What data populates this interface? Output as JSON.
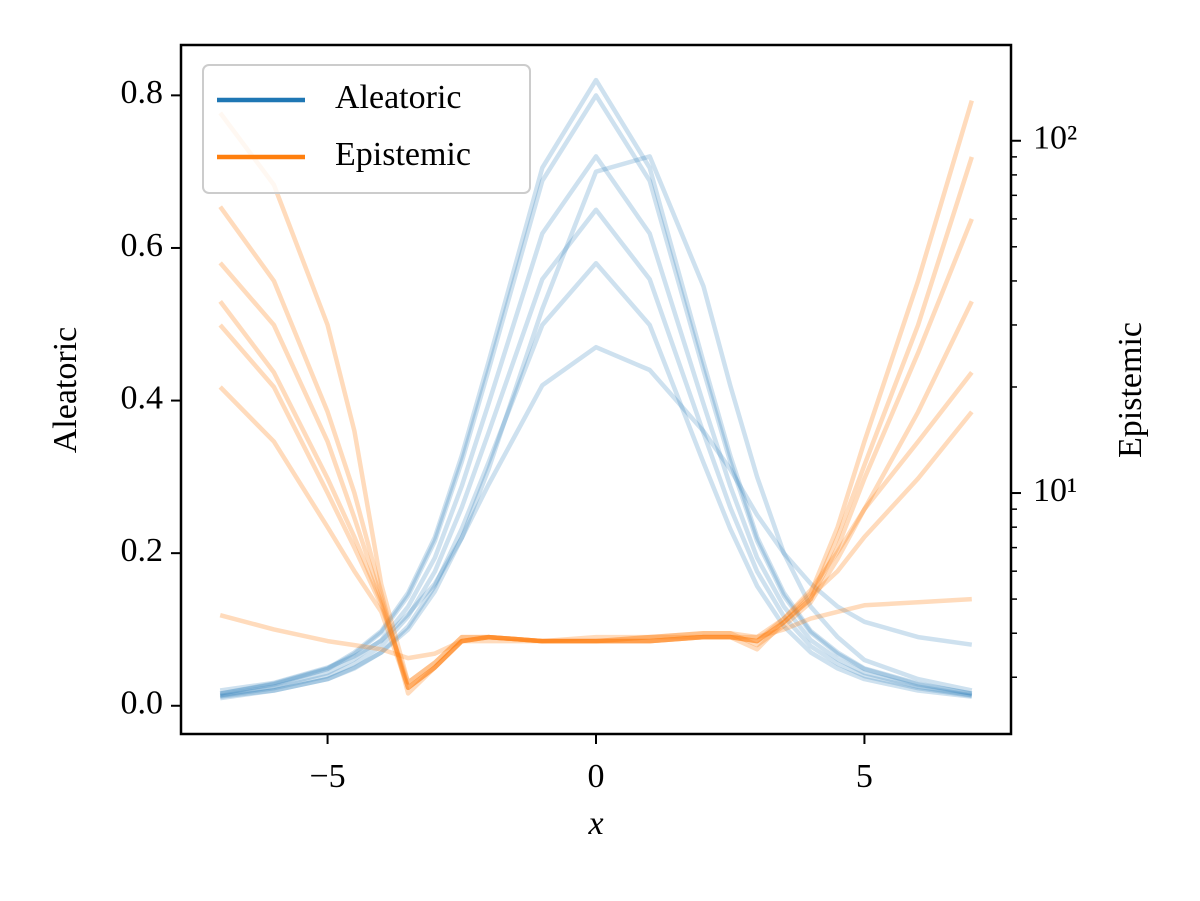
{
  "chart_data": {
    "type": "line",
    "xlabel": "x",
    "ylabel": "Aleatoric",
    "y2label": "Epistemic",
    "x": [
      -7,
      -6,
      -5,
      -4.5,
      -4,
      -3.5,
      -3,
      -2.5,
      -2,
      -1,
      0,
      1,
      2,
      2.5,
      3,
      3.5,
      4,
      4.5,
      5,
      6,
      7
    ],
    "xlim": [
      -7.73,
      7.73
    ],
    "xticks": [
      {
        "value": -5,
        "label": "−5"
      },
      0,
      5
    ],
    "ylim": [
      -0.037,
      0.866
    ],
    "yticks": [
      {
        "value": 0,
        "label": "0.0"
      },
      0.2,
      0.4,
      0.6,
      0.8
    ],
    "y2lim": [
      2.07,
      187
    ],
    "y2log": true,
    "y2ticks": [
      {
        "value": 10,
        "label": "10¹"
      },
      {
        "value": 100,
        "label": "10²"
      }
    ],
    "y2minorticks": [
      3,
      4,
      5,
      6,
      7,
      8,
      9,
      20,
      30,
      40,
      50,
      60,
      70,
      80,
      90
    ],
    "legend": "upper left",
    "series": [
      {
        "name": "Aleatoric",
        "color": "#1f77b4",
        "alpha": 0.22,
        "axis": "y",
        "values": [
          [
            0.016,
            0.028,
            0.048,
            0.068,
            0.096,
            0.144,
            0.216,
            0.32,
            0.44,
            0.688,
            0.8,
            0.688,
            0.44,
            0.32,
            0.216,
            0.144,
            0.096,
            0.068,
            0.048,
            0.028,
            0.016
          ],
          [
            0.014,
            0.025,
            0.043,
            0.061,
            0.086,
            0.13,
            0.194,
            0.288,
            0.396,
            0.619,
            0.72,
            0.619,
            0.396,
            0.288,
            0.194,
            0.13,
            0.086,
            0.061,
            0.043,
            0.025,
            0.014
          ],
          [
            0.013,
            0.023,
            0.039,
            0.055,
            0.078,
            0.117,
            0.176,
            0.26,
            0.358,
            0.559,
            0.65,
            0.559,
            0.358,
            0.26,
            0.176,
            0.117,
            0.078,
            0.055,
            0.039,
            0.023,
            0.013
          ],
          [
            0.012,
            0.02,
            0.035,
            0.049,
            0.07,
            0.104,
            0.157,
            0.232,
            0.319,
            0.499,
            0.58,
            0.499,
            0.319,
            0.232,
            0.157,
            0.104,
            0.07,
            0.049,
            0.035,
            0.02,
            0.012
          ],
          [
            0.02,
            0.03,
            0.05,
            0.065,
            0.085,
            0.12,
            0.16,
            0.22,
            0.29,
            0.42,
            0.47,
            0.44,
            0.36,
            0.31,
            0.25,
            0.2,
            0.16,
            0.13,
            0.11,
            0.09,
            0.08
          ],
          [
            0.01,
            0.02,
            0.035,
            0.05,
            0.07,
            0.1,
            0.15,
            0.22,
            0.31,
            0.52,
            0.7,
            0.72,
            0.55,
            0.42,
            0.3,
            0.2,
            0.13,
            0.09,
            0.06,
            0.035,
            0.02
          ],
          [
            0.016,
            0.029,
            0.049,
            0.07,
            0.098,
            0.148,
            0.221,
            0.328,
            0.451,
            0.705,
            0.82,
            0.705,
            0.451,
            0.328,
            0.221,
            0.148,
            0.098,
            0.07,
            0.049,
            0.029,
            0.016
          ]
        ]
      },
      {
        "name": "Epistemic",
        "color": "#ff7f0e",
        "alpha": 0.28,
        "axis": "y2",
        "values": [
          [
            120,
            75,
            30,
            15,
            5.5,
            2.9,
            3.3,
            3.9,
            3.9,
            3.8,
            3.8,
            3.9,
            4.0,
            4.0,
            3.9,
            4.4,
            5.2,
            8,
            14,
            40,
            130
          ],
          [
            45,
            30,
            14,
            8.5,
            5,
            2.8,
            3.2,
            3.8,
            3.9,
            3.8,
            3.8,
            3.8,
            3.9,
            3.9,
            3.8,
            4.3,
            5,
            7,
            11,
            25,
            60
          ],
          [
            30,
            20,
            10,
            7,
            4.8,
            2.9,
            3.3,
            3.9,
            3.9,
            3.8,
            3.9,
            3.9,
            4.0,
            4.0,
            3.7,
            4.2,
            4.9,
            6.5,
            9,
            17,
            35
          ],
          [
            20,
            14,
            8,
            6,
            4.6,
            2.8,
            3.2,
            3.8,
            3.8,
            3.8,
            3.8,
            3.8,
            3.9,
            3.9,
            3.8,
            4.3,
            5.1,
            6,
            7.5,
            11,
            17
          ],
          [
            65,
            40,
            17,
            10,
            5.2,
            2.7,
            3.2,
            3.8,
            3.9,
            3.8,
            3.8,
            3.9,
            3.9,
            3.9,
            3.6,
            4.3,
            5,
            7.5,
            12,
            30,
            90
          ],
          [
            4.5,
            4.1,
            3.8,
            3.7,
            3.6,
            3.4,
            3.5,
            3.8,
            3.9,
            3.8,
            3.8,
            3.8,
            3.9,
            3.9,
            3.9,
            4.1,
            4.4,
            4.6,
            4.8,
            4.9,
            5
          ],
          [
            35,
            22,
            11,
            7.5,
            4.9,
            2.8,
            3.2,
            3.8,
            3.9,
            3.8,
            3.8,
            3.8,
            3.9,
            3.9,
            3.8,
            4.4,
            5.3,
            6.8,
            9,
            14,
            22
          ]
        ]
      }
    ]
  }
}
